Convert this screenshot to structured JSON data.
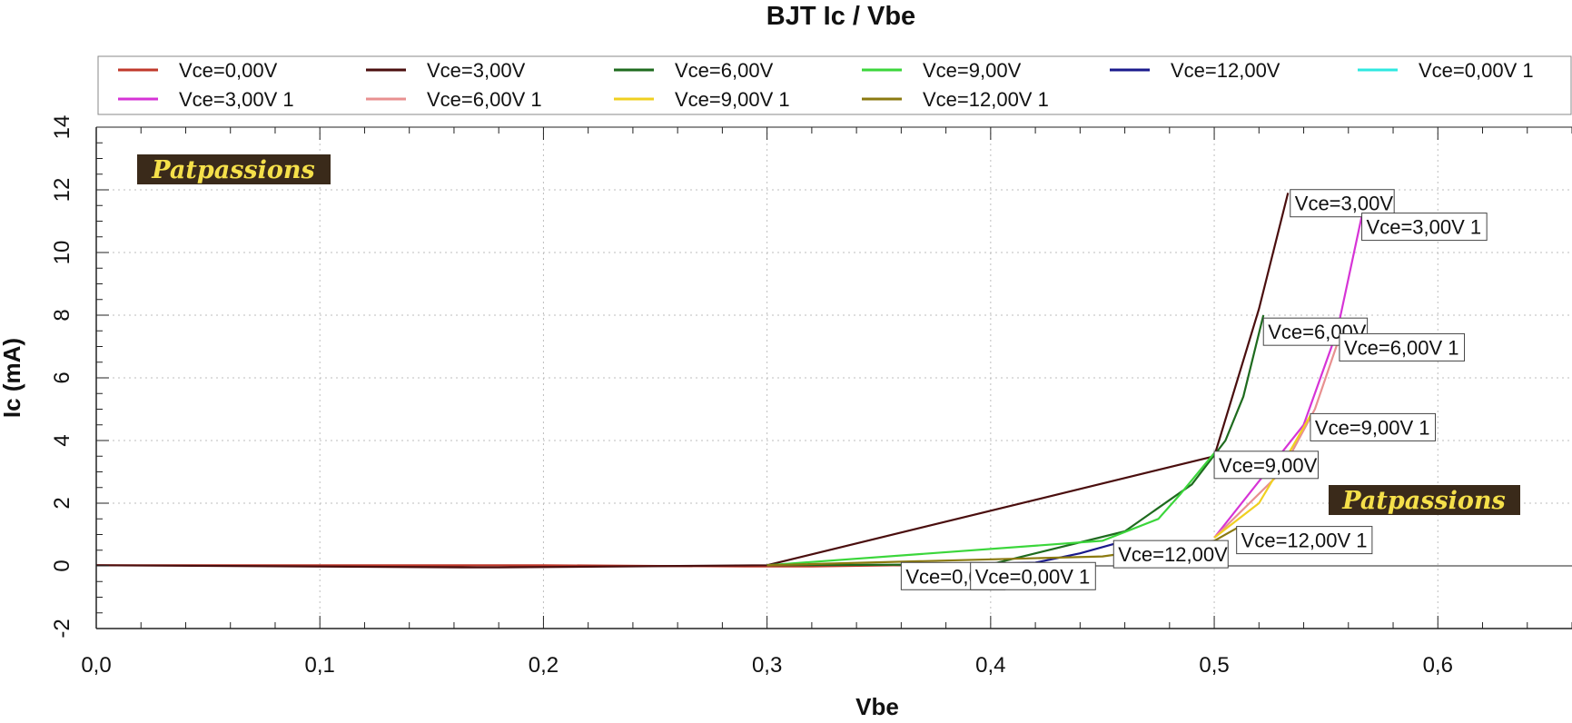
{
  "chart_data": {
    "type": "line",
    "title": "BJT Ic / Vbe",
    "xlabel": "Vbe",
    "ylabel": "Ic (mA)",
    "xlim": [
      0,
      0.66
    ],
    "ylim": [
      -2,
      14
    ],
    "x_ticks": [
      "0,0",
      "0,1",
      "0,2",
      "0,3",
      "0,4",
      "0,5",
      "0,6"
    ],
    "y_ticks": [
      "-2",
      "0",
      "2",
      "4",
      "6",
      "8",
      "10",
      "12",
      "14"
    ],
    "grid": true,
    "legend_position": "top",
    "watermark": "Patpassions",
    "series": [
      {
        "name": "Vce=0,00V",
        "color": "#c0392b",
        "x": [
          0,
          0.1,
          0.2,
          0.29,
          0.32,
          0.36
        ],
        "y": [
          0.02,
          0.02,
          0.02,
          -0.02,
          -0.02,
          0.02
        ]
      },
      {
        "name": "Vce=3,00V",
        "color": "#4a0e0e",
        "x": [
          0,
          0.17,
          0.18,
          0.3,
          0.5,
          0.52,
          0.533
        ],
        "y": [
          0.02,
          -0.05,
          -0.05,
          0.02,
          3.5,
          8.2,
          11.9
        ]
      },
      {
        "name": "Vce=6,00V",
        "color": "#1e6b1e",
        "x": [
          0.3,
          0.4,
          0.46,
          0.49,
          0.505,
          0.513,
          0.522
        ],
        "y": [
          0.02,
          0.05,
          1.1,
          2.6,
          4.0,
          5.4,
          8.0
        ]
      },
      {
        "name": "Vce=9,00V",
        "color": "#3bd63b",
        "x": [
          0.3,
          0.45,
          0.475,
          0.485,
          0.5
        ],
        "y": [
          0.02,
          0.8,
          1.5,
          2.3,
          3.6
        ]
      },
      {
        "name": "Vce=12,00V",
        "color": "#1a1a8c",
        "x": [
          0.36,
          0.42,
          0.44,
          0.455
        ],
        "y": [
          0.02,
          0.1,
          0.4,
          0.7
        ]
      },
      {
        "name": "Vce=0,00V 1",
        "color": "#2ee8e0",
        "x": [
          0.36,
          0.4,
          0.42
        ],
        "y": [
          0.02,
          0.02,
          0.03
        ]
      },
      {
        "name": "Vce=3,00V 1",
        "color": "#d633d6",
        "x": [
          0.5,
          0.54,
          0.555,
          0.567
        ],
        "y": [
          0.9,
          4.5,
          7.5,
          11.5
        ]
      },
      {
        "name": "Vce=6,00V 1",
        "color": "#e89090",
        "x": [
          0.5,
          0.53,
          0.545,
          0.557
        ],
        "y": [
          0.9,
          3.0,
          5.0,
          7.5
        ]
      },
      {
        "name": "Vce=9,00V 1",
        "color": "#f0d020",
        "x": [
          0.5,
          0.52,
          0.535,
          0.543
        ],
        "y": [
          0.9,
          2.0,
          3.8,
          4.8
        ]
      },
      {
        "name": "Vce=12,00V 1",
        "color": "#8b7a10",
        "x": [
          0.3,
          0.45,
          0.5,
          0.51
        ],
        "y": [
          0.02,
          0.3,
          0.8,
          1.2
        ]
      }
    ],
    "annotations": [
      {
        "text": "Vce=3,00V",
        "x": 0.534,
        "y": 11.95
      },
      {
        "text": "Vce=3,00V 1",
        "x": 0.566,
        "y": 11.2
      },
      {
        "text": "Vce=6,00V",
        "x": 0.522,
        "y": 7.85
      },
      {
        "text": "Vce=6,00V 1",
        "x": 0.556,
        "y": 7.35
      },
      {
        "text": "Vce=9,00V 1",
        "x": 0.543,
        "y": 4.8
      },
      {
        "text": "Vce=9,00V",
        "x": 0.5,
        "y": 3.6
      },
      {
        "text": "Vce=12,00V 1",
        "x": 0.51,
        "y": 1.2
      },
      {
        "text": "Vce=12,00V",
        "x": 0.455,
        "y": 0.75
      },
      {
        "text": "Vce=0,00V",
        "x": 0.36,
        "y": 0.05
      },
      {
        "text": "Vce=0,00V 1",
        "x": 0.391,
        "y": 0.05
      }
    ]
  }
}
